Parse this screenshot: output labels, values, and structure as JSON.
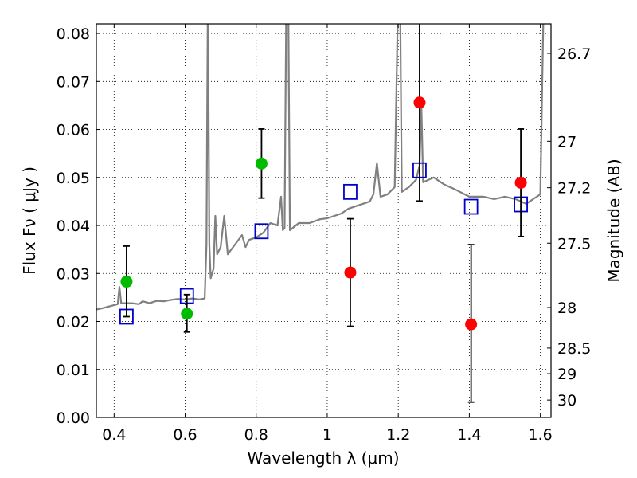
{
  "chart_data": {
    "type": "scatter",
    "xlabel": "Wavelength  λ (μm)",
    "ylabel": "Flux  Fν ( μJy )",
    "ylabel_right": "Magnitude (AB)",
    "xlim": [
      0.35,
      1.63
    ],
    "ylim": [
      0.0,
      0.082
    ],
    "x_ticks": [
      "0.4",
      "0.6",
      "0.8",
      "1",
      "1.2",
      "1.4",
      "1.6"
    ],
    "y_ticks": [
      "0.00",
      "0.01",
      "0.02",
      "0.03",
      "0.04",
      "0.05",
      "0.06",
      "0.07",
      "0.08"
    ],
    "right_ticks": [
      {
        "label": "26.7",
        "mag": 26.7
      },
      {
        "label": "27",
        "mag": 27.0
      },
      {
        "label": "27.2",
        "mag": 27.2
      },
      {
        "label": "27.5",
        "mag": 27.5
      },
      {
        "label": "28",
        "mag": 28.0
      },
      {
        "label": "28.5",
        "mag": 28.5
      },
      {
        "label": "29",
        "mag": 29.0
      },
      {
        "label": "30",
        "mag": 30.0
      }
    ],
    "grid": true,
    "colors": {
      "green": "#00bb00",
      "red": "#ff0000",
      "model": "#808080",
      "synthetic": "#0000cc",
      "errorbar": "#000000"
    },
    "series": [
      {
        "kind": "line",
        "color": "#808080",
        "points": [
          [
            0.35,
            0.0225
          ],
          [
            0.37,
            0.0228
          ],
          [
            0.39,
            0.0232
          ],
          [
            0.41,
            0.0236
          ],
          [
            0.415,
            0.0272
          ],
          [
            0.42,
            0.0238
          ],
          [
            0.45,
            0.0238
          ],
          [
            0.47,
            0.0236
          ],
          [
            0.48,
            0.0242
          ],
          [
            0.5,
            0.0238
          ],
          [
            0.52,
            0.0243
          ],
          [
            0.54,
            0.0242
          ],
          [
            0.56,
            0.0245
          ],
          [
            0.58,
            0.0247
          ],
          [
            0.6,
            0.0246
          ],
          [
            0.62,
            0.0248
          ],
          [
            0.64,
            0.0246
          ],
          [
            0.655,
            0.0248
          ],
          [
            0.66,
            0.036
          ],
          [
            0.664,
            0.09
          ],
          [
            0.668,
            0.036
          ],
          [
            0.672,
            0.029
          ],
          [
            0.68,
            0.031
          ],
          [
            0.685,
            0.042
          ],
          [
            0.69,
            0.034
          ],
          [
            0.7,
            0.0355
          ],
          [
            0.71,
            0.042
          ],
          [
            0.72,
            0.034
          ],
          [
            0.73,
            0.035
          ],
          [
            0.74,
            0.036
          ],
          [
            0.76,
            0.038
          ],
          [
            0.77,
            0.0355
          ],
          [
            0.78,
            0.037
          ],
          [
            0.8,
            0.0375
          ],
          [
            0.82,
            0.0385
          ],
          [
            0.84,
            0.0405
          ],
          [
            0.86,
            0.04
          ],
          [
            0.87,
            0.046
          ],
          [
            0.875,
            0.039
          ],
          [
            0.88,
            0.0395
          ],
          [
            0.885,
            0.09
          ],
          [
            0.89,
            0.09
          ],
          [
            0.895,
            0.039
          ],
          [
            0.92,
            0.0405
          ],
          [
            0.95,
            0.0405
          ],
          [
            0.98,
            0.0413
          ],
          [
            1.0,
            0.0415
          ],
          [
            1.02,
            0.042
          ],
          [
            1.04,
            0.0425
          ],
          [
            1.06,
            0.0435
          ],
          [
            1.08,
            0.044
          ],
          [
            1.1,
            0.0445
          ],
          [
            1.12,
            0.045
          ],
          [
            1.13,
            0.0465
          ],
          [
            1.14,
            0.053
          ],
          [
            1.15,
            0.046
          ],
          [
            1.17,
            0.0465
          ],
          [
            1.19,
            0.048
          ],
          [
            1.2,
            0.09
          ],
          [
            1.205,
            0.09
          ],
          [
            1.21,
            0.047
          ],
          [
            1.23,
            0.048
          ],
          [
            1.25,
            0.0495
          ],
          [
            1.26,
            0.0525
          ],
          [
            1.265,
            0.065
          ],
          [
            1.27,
            0.049
          ],
          [
            1.3,
            0.05
          ],
          [
            1.33,
            0.0485
          ],
          [
            1.36,
            0.0475
          ],
          [
            1.4,
            0.046
          ],
          [
            1.44,
            0.046
          ],
          [
            1.47,
            0.0455
          ],
          [
            1.5,
            0.046
          ],
          [
            1.53,
            0.0455
          ],
          [
            1.56,
            0.0445
          ],
          [
            1.58,
            0.0455
          ],
          [
            1.6,
            0.0465
          ],
          [
            1.61,
            0.09
          ],
          [
            1.63,
            0.09
          ]
        ]
      },
      {
        "kind": "points",
        "marker": "square",
        "color": "#0000cc",
        "x": [
          0.435,
          0.605,
          0.815,
          1.065,
          1.26,
          1.405,
          1.545
        ],
        "y": [
          0.021,
          0.0253,
          0.0388,
          0.047,
          0.0515,
          0.0439,
          0.0444
        ]
      },
      {
        "kind": "points",
        "marker": "circle",
        "color": "#00bb00",
        "x": [
          0.435,
          0.605,
          0.815
        ],
        "y": [
          0.0283,
          0.0216,
          0.0529
        ],
        "yerr_low": [
          0.0073,
          0.0038,
          0.0072
        ],
        "yerr_high": [
          0.0074,
          0.004,
          0.0072
        ]
      },
      {
        "kind": "points",
        "marker": "circle",
        "color": "#ff0000",
        "x": [
          1.065,
          1.26,
          1.405,
          1.545
        ],
        "y": [
          0.0302,
          0.0656,
          0.0194,
          0.0489
        ],
        "yerr_low": [
          0.0112,
          0.0205,
          0.0162,
          0.0112
        ],
        "yerr_high": [
          0.0112,
          0.0205,
          0.0166,
          0.0112
        ]
      }
    ]
  }
}
